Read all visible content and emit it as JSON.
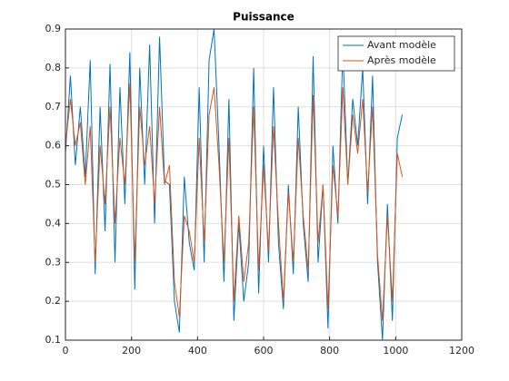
{
  "chart_data": {
    "type": "line",
    "title": "Puissance",
    "x": [
      0,
      15,
      30,
      45,
      60,
      75,
      90,
      105,
      120,
      135,
      150,
      165,
      180,
      195,
      210,
      225,
      240,
      255,
      270,
      285,
      300,
      315,
      330,
      345,
      360,
      375,
      390,
      405,
      420,
      435,
      450,
      465,
      480,
      495,
      510,
      525,
      540,
      555,
      570,
      585,
      600,
      615,
      630,
      645,
      660,
      675,
      690,
      705,
      720,
      735,
      750,
      765,
      780,
      795,
      810,
      825,
      840,
      855,
      870,
      885,
      900,
      915,
      930,
      945,
      960,
      975,
      990,
      1005,
      1020
    ],
    "series": [
      {
        "name": "Avant modèle",
        "color": "#0072bd",
        "values": [
          0.58,
          0.78,
          0.55,
          0.7,
          0.52,
          0.82,
          0.27,
          0.7,
          0.38,
          0.81,
          0.3,
          0.75,
          0.45,
          0.84,
          0.23,
          0.8,
          0.5,
          0.86,
          0.4,
          0.88,
          0.51,
          0.5,
          0.2,
          0.12,
          0.52,
          0.35,
          0.28,
          0.75,
          0.3,
          0.82,
          0.9,
          0.6,
          0.25,
          0.72,
          0.15,
          0.4,
          0.2,
          0.3,
          0.8,
          0.22,
          0.6,
          0.3,
          0.75,
          0.35,
          0.18,
          0.5,
          0.27,
          0.7,
          0.4,
          0.25,
          0.83,
          0.3,
          0.5,
          0.13,
          0.6,
          0.4,
          0.85,
          0.5,
          0.72,
          0.6,
          0.8,
          0.45,
          0.78,
          0.3,
          0.1,
          0.45,
          0.15,
          0.62,
          0.68
        ]
      },
      {
        "name": "Après modèle",
        "color": "#d95319",
        "values": [
          0.6,
          0.72,
          0.6,
          0.66,
          0.5,
          0.65,
          0.3,
          0.6,
          0.45,
          0.7,
          0.4,
          0.62,
          0.5,
          0.76,
          0.3,
          0.7,
          0.55,
          0.65,
          0.45,
          0.7,
          0.5,
          0.55,
          0.25,
          0.16,
          0.42,
          0.38,
          0.3,
          0.62,
          0.35,
          0.68,
          0.75,
          0.55,
          0.3,
          0.62,
          0.2,
          0.42,
          0.25,
          0.35,
          0.7,
          0.28,
          0.55,
          0.33,
          0.65,
          0.4,
          0.2,
          0.48,
          0.3,
          0.62,
          0.42,
          0.28,
          0.73,
          0.35,
          0.5,
          0.18,
          0.55,
          0.42,
          0.75,
          0.5,
          0.68,
          0.58,
          0.72,
          0.48,
          0.7,
          0.32,
          0.15,
          0.42,
          0.2,
          0.58,
          0.52
        ]
      }
    ],
    "xlim": [
      0,
      1200
    ],
    "xticks": [
      0,
      200,
      400,
      600,
      800,
      1000,
      1200
    ],
    "ylim": [
      0.1,
      0.9
    ],
    "yticks": [
      0.1,
      0.2,
      0.3,
      0.4,
      0.5,
      0.6,
      0.7,
      0.8,
      0.9
    ],
    "grid": true,
    "legend": "northeast"
  }
}
